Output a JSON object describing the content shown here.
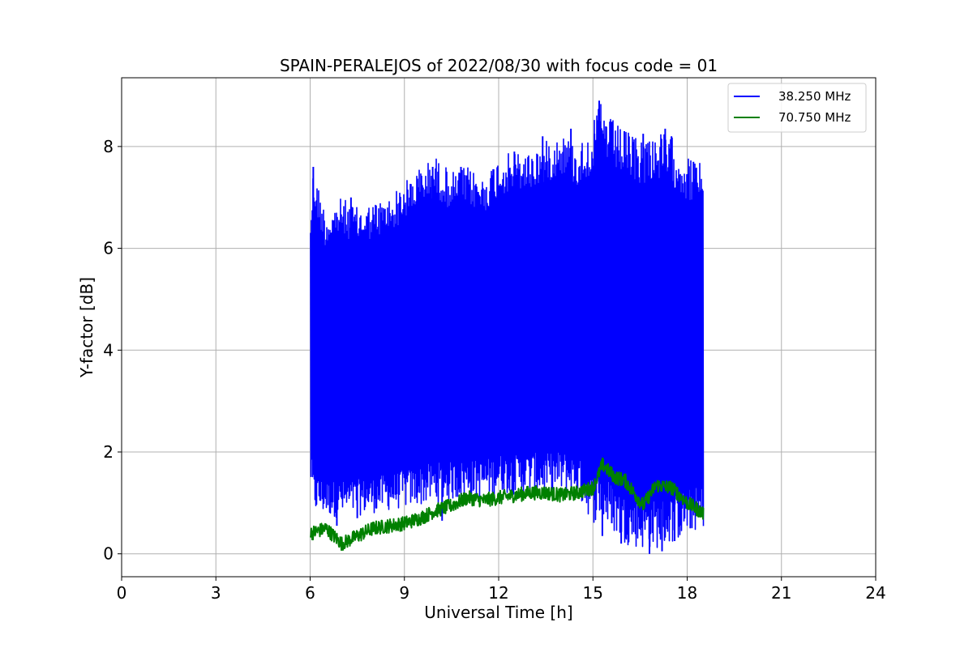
{
  "chart_data": {
    "type": "line",
    "title": "SPAIN-PERALEJOS of 2022/08/30 with focus code = 01",
    "xlabel": "Universal Time [h]",
    "ylabel": "Y-factor [dB]",
    "xlim": [
      0,
      24
    ],
    "ylim": [
      -0.45,
      9.35
    ],
    "xticks": [
      0,
      3,
      6,
      9,
      12,
      15,
      18,
      21,
      24
    ],
    "xtick_labels": [
      "0",
      "3",
      "6",
      "9",
      "12",
      "15",
      "18",
      "21",
      "24"
    ],
    "yticks": [
      0,
      2,
      4,
      6,
      8
    ],
    "ytick_labels": [
      "0",
      "2",
      "4",
      "6",
      "8"
    ],
    "grid": true,
    "legend_position": "top-right",
    "series": [
      {
        "name": "38.250 MHz",
        "color": "#0000ff",
        "x": [
          6.0,
          6.1,
          6.5,
          7.0,
          7.5,
          8.0,
          8.5,
          9.0,
          9.5,
          10.0,
          10.5,
          11.0,
          11.5,
          12.0,
          12.5,
          13.0,
          13.5,
          14.0,
          14.5,
          15.0,
          15.2,
          15.5,
          16.0,
          16.5,
          17.0,
          17.5,
          18.0,
          18.5
        ],
        "low": [
          1.4,
          0.8,
          0.75,
          0.7,
          0.75,
          0.8,
          0.85,
          0.9,
          0.95,
          1.0,
          1.05,
          1.1,
          1.1,
          1.2,
          1.15,
          1.2,
          1.15,
          1.2,
          1.1,
          0.6,
          0.7,
          0.5,
          0.2,
          0.1,
          0.1,
          0.2,
          0.4,
          0.5
        ],
        "high": [
          6.6,
          7.6,
          6.7,
          7.0,
          6.8,
          6.9,
          7.0,
          7.3,
          7.6,
          7.8,
          7.5,
          7.6,
          7.4,
          7.8,
          7.9,
          7.9,
          8.1,
          8.3,
          8.0,
          8.4,
          8.9,
          8.6,
          8.3,
          8.2,
          8.3,
          8.2,
          7.8,
          7.7
        ],
        "spikes_low": [
          [
            6.85,
            0.55
          ],
          [
            7.5,
            0.7
          ],
          [
            10.2,
            0.65
          ],
          [
            15.3,
            0.35
          ],
          [
            15.6,
            0.6
          ],
          [
            15.9,
            0.2
          ],
          [
            16.8,
            0.0
          ],
          [
            17.2,
            0.05
          ],
          [
            17.6,
            0.25
          ],
          [
            18.1,
            0.5
          ]
        ],
        "spikes_high": [
          [
            6.1,
            7.6
          ],
          [
            7.3,
            7.0
          ],
          [
            9.9,
            7.6
          ],
          [
            10.8,
            7.6
          ],
          [
            12.5,
            7.9
          ],
          [
            13.4,
            8.2
          ],
          [
            14.3,
            8.35
          ],
          [
            15.05,
            8.25
          ],
          [
            15.2,
            8.9
          ],
          [
            15.6,
            8.35
          ],
          [
            16.0,
            8.3
          ],
          [
            16.6,
            8.25
          ],
          [
            17.3,
            8.35
          ],
          [
            17.5,
            8.2
          ],
          [
            18.2,
            7.7
          ]
        ]
      },
      {
        "name": "70.750 MHz",
        "color": "#008000",
        "x": [
          6.0,
          6.5,
          7.0,
          7.5,
          8.0,
          8.5,
          9.0,
          9.5,
          10.0,
          10.5,
          11.0,
          11.5,
          12.0,
          12.5,
          13.0,
          13.5,
          14.0,
          14.5,
          15.0,
          15.3,
          15.7,
          16.0,
          16.3,
          16.6,
          17.0,
          17.5,
          18.0,
          18.5
        ],
        "y": [
          0.4,
          0.5,
          0.2,
          0.35,
          0.5,
          0.55,
          0.6,
          0.7,
          0.85,
          0.95,
          1.1,
          1.05,
          1.1,
          1.15,
          1.2,
          1.2,
          1.15,
          1.2,
          1.3,
          1.75,
          1.5,
          1.45,
          1.2,
          0.95,
          1.35,
          1.3,
          1.0,
          0.8
        ]
      }
    ]
  }
}
